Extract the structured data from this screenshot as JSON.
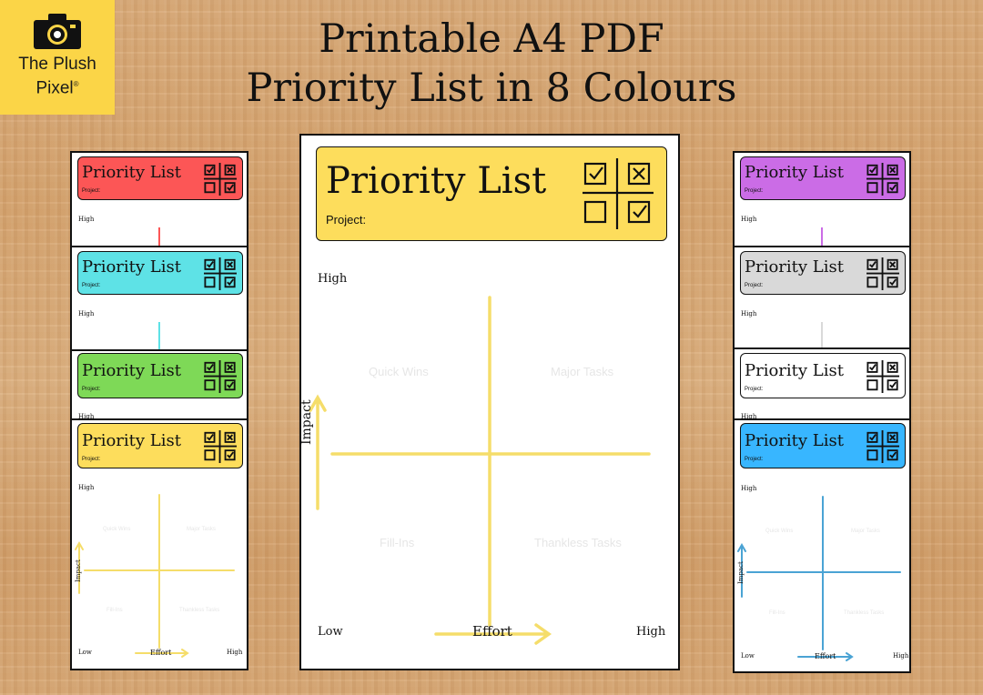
{
  "brand": {
    "line1": "The Plush",
    "line2": "Pixel",
    "mark": "®"
  },
  "title": {
    "line1": "Printable A4 PDF",
    "line2": "Priority List in 8 Colours"
  },
  "sheet": {
    "heading": "Priority List",
    "project_label": "Project:",
    "high_label": "High",
    "low_label": "Low",
    "y_axis_label": "Impact",
    "x_axis_label": "Effort",
    "quadrants": {
      "top_left": "Quick Wins",
      "top_right": "Major Tasks",
      "bottom_left": "Fill-Ins",
      "bottom_right": "Thankless Tasks"
    }
  },
  "colours": {
    "red": "#fc5656",
    "cyan": "#5ee2e6",
    "green": "#7ed957",
    "yellow": "#fddd5c",
    "purple": "#cb6ce6",
    "grey": "#d9d9d9",
    "white": "#ffffff",
    "blue": "#38b6ff",
    "blue_axis": "#4aa3d4",
    "yellow_axis": "#f5dd6a"
  },
  "icons": {
    "checklist": "checkbox-grid-icon",
    "camera": "camera-icon"
  }
}
